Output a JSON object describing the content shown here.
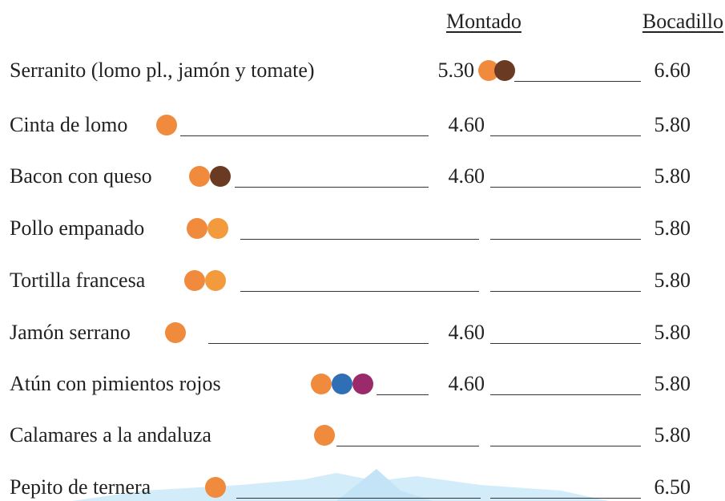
{
  "header": {
    "montado": "Montado",
    "bocadillo": "Bocadillo"
  },
  "rows": [
    {
      "name": "Serranito (lomo pl., jamón y tomate)",
      "montado": "5.30",
      "bocadillo": "6.60"
    },
    {
      "name": "Cinta de lomo",
      "montado": "4.60",
      "bocadillo": "5.80"
    },
    {
      "name": "Bacon con queso",
      "montado": "4.60",
      "bocadillo": "5.80"
    },
    {
      "name": "Pollo empanado",
      "bocadillo": "5.80"
    },
    {
      "name": "Tortilla francesa",
      "bocadillo": "5.80"
    },
    {
      "name": "Jamón serrano",
      "montado": "4.60",
      "bocadillo": "5.80"
    },
    {
      "name": "Atún con pimientos rojos",
      "montado": "4.60",
      "bocadillo": "5.80"
    },
    {
      "name": "Calamares a la andaluza",
      "bocadillo": "5.80"
    },
    {
      "name": "Pepito de ternera",
      "bocadillo": "6.50"
    }
  ]
}
